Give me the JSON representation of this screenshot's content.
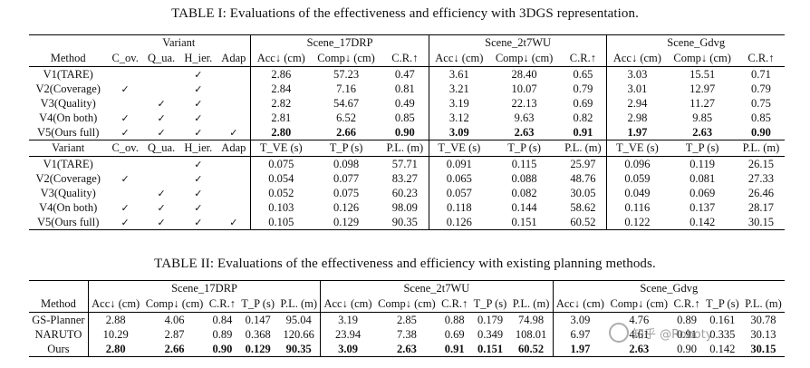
{
  "table1": {
    "caption": "TABLE I: Evaluations of the effectiveness and efficiency with 3DGS representation.",
    "method_label": "Method",
    "variant_group_label": "Variant",
    "variant_label": "Variant",
    "variant_cols": [
      "C_ov.",
      "Q_ua.",
      "H_ier.",
      "Adap"
    ],
    "scenes": [
      "Scene_17DRP",
      "Scene_2t7WU",
      "Scene_Gdvg"
    ],
    "metrics_top": [
      "Acc↓ (cm)",
      "Comp↓ (cm)",
      "C.R.↑"
    ],
    "metrics_bottom": [
      "T_VE (s)",
      "T_P (s)",
      "P.L. (m)"
    ],
    "rows": [
      {
        "name": "V1(TARE)",
        "checks": [
          "",
          "",
          "✓",
          ""
        ],
        "top": [
          "2.86",
          "57.23",
          "0.47",
          "3.61",
          "28.40",
          "0.65",
          "3.03",
          "15.51",
          "0.71"
        ],
        "bottom": [
          "0.075",
          "0.098",
          "57.71",
          "0.091",
          "0.115",
          "25.97",
          "0.096",
          "0.119",
          "26.15"
        ]
      },
      {
        "name": "V2(Coverage)",
        "checks": [
          "✓",
          "",
          "✓",
          ""
        ],
        "top": [
          "2.84",
          "7.16",
          "0.81",
          "3.21",
          "10.07",
          "0.79",
          "3.01",
          "12.97",
          "0.79"
        ],
        "bottom": [
          "0.054",
          "0.077",
          "83.27",
          "0.065",
          "0.088",
          "48.76",
          "0.059",
          "0.081",
          "27.33"
        ]
      },
      {
        "name": "V3(Quality)",
        "checks": [
          "",
          "✓",
          "✓",
          ""
        ],
        "top": [
          "2.82",
          "54.67",
          "0.49",
          "3.19",
          "22.13",
          "0.69",
          "2.94",
          "11.27",
          "0.75"
        ],
        "bottom": [
          "0.052",
          "0.075",
          "60.23",
          "0.057",
          "0.082",
          "30.05",
          "0.049",
          "0.069",
          "26.46"
        ]
      },
      {
        "name": "V4(On both)",
        "checks": [
          "✓",
          "✓",
          "✓",
          ""
        ],
        "top": [
          "2.81",
          "6.52",
          "0.85",
          "3.12",
          "9.63",
          "0.82",
          "2.98",
          "9.85",
          "0.85"
        ],
        "bottom": [
          "0.103",
          "0.126",
          "98.09",
          "0.118",
          "0.144",
          "58.62",
          "0.116",
          "0.137",
          "28.17"
        ]
      },
      {
        "name": "V5(Ours full)",
        "checks": [
          "✓",
          "✓",
          "✓",
          "✓"
        ],
        "top": [
          "2.80",
          "2.66",
          "0.90",
          "3.09",
          "2.63",
          "0.91",
          "1.97",
          "2.63",
          "0.90"
        ],
        "bottom": [
          "0.105",
          "0.129",
          "90.35",
          "0.126",
          "0.151",
          "60.52",
          "0.122",
          "0.142",
          "30.15"
        ]
      }
    ]
  },
  "table2": {
    "caption": "TABLE II: Evaluations of the effectiveness and efficiency with existing planning methods.",
    "method_label": "Method",
    "scenes": [
      "Scene_17DRP",
      "Scene_2t7WU",
      "Scene_Gdvg"
    ],
    "metrics": [
      "Acc↓ (cm)",
      "Comp↓ (cm)",
      "C.R.↑",
      "T_P (s)",
      "P.L. (m)"
    ],
    "rows": [
      {
        "name": "GS-Planner",
        "vals": [
          "2.88",
          "4.06",
          "0.84",
          "0.147",
          "95.04",
          "3.19",
          "2.85",
          "0.88",
          "0.179",
          "74.98",
          "3.09",
          "4.76",
          "0.89",
          "0.161",
          "30.78"
        ]
      },
      {
        "name": "NARUTO",
        "vals": [
          "10.29",
          "2.87",
          "0.89",
          "0.368",
          "120.66",
          "23.94",
          "7.38",
          "0.69",
          "0.349",
          "108.01",
          "6.97",
          "4.61",
          "0.91",
          "0.335",
          "30.13"
        ]
      },
      {
        "name": "Ours",
        "vals": [
          "2.80",
          "2.66",
          "0.90",
          "0.129",
          "90.35",
          "3.09",
          "2.63",
          "0.91",
          "0.151",
          "60.52",
          "1.97",
          "2.63",
          "0.90",
          "0.142",
          "30.15"
        ]
      }
    ]
  },
  "watermark": {
    "text": "知乎 @Roboty"
  }
}
